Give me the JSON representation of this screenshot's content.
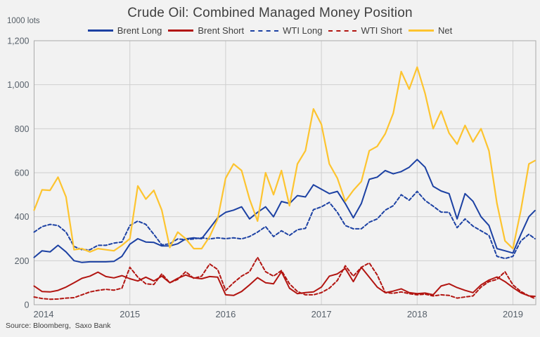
{
  "chart_data": {
    "type": "line",
    "title": "Crude Oil: Combined Managed Money Position",
    "ylabel": "1000 lots",
    "source": "Source: Bloomberg,  Saxo Bank",
    "xlim": [
      2014,
      2019.25
    ],
    "ylim": [
      0,
      1200
    ],
    "grid": true,
    "legend_position": "top",
    "x_ticks": [
      2014,
      2015,
      2016,
      2017,
      2018,
      2019
    ],
    "y_ticks": [
      0,
      200,
      400,
      600,
      800,
      1000,
      1200
    ],
    "y_tick_labels": [
      "0",
      "200",
      "400",
      "600",
      "800",
      "1,000",
      "1,200"
    ],
    "x_unit": "year (monthly samples)",
    "x": [
      2014.0,
      2014.083,
      2014.167,
      2014.25,
      2014.333,
      2014.417,
      2014.5,
      2014.583,
      2014.667,
      2014.75,
      2014.833,
      2014.917,
      2015.0,
      2015.083,
      2015.167,
      2015.25,
      2015.333,
      2015.417,
      2015.5,
      2015.583,
      2015.667,
      2015.75,
      2015.833,
      2015.917,
      2016.0,
      2016.083,
      2016.167,
      2016.25,
      2016.333,
      2016.417,
      2016.5,
      2016.583,
      2016.667,
      2016.75,
      2016.833,
      2016.917,
      2017.0,
      2017.083,
      2017.167,
      2017.25,
      2017.333,
      2017.417,
      2017.5,
      2017.583,
      2017.667,
      2017.75,
      2017.833,
      2017.917,
      2018.0,
      2018.083,
      2018.167,
      2018.25,
      2018.333,
      2018.417,
      2018.5,
      2018.583,
      2018.667,
      2018.75,
      2018.833,
      2018.917,
      2019.0,
      2019.083,
      2019.167,
      2019.23
    ],
    "series": [
      {
        "name": "Brent Long",
        "color": "#1c41a3",
        "dash": "solid",
        "values": [
          215,
          245,
          240,
          270,
          240,
          200,
          192,
          195,
          195,
          195,
          197,
          220,
          275,
          300,
          285,
          283,
          267,
          267,
          277,
          299,
          304,
          300,
          347,
          395,
          420,
          430,
          445,
          390,
          420,
          445,
          400,
          469,
          460,
          496,
          490,
          545,
          525,
          505,
          515,
          460,
          395,
          460,
          570,
          580,
          610,
          595,
          605,
          625,
          660,
          625,
          538,
          517,
          505,
          390,
          505,
          470,
          400,
          360,
          255,
          245,
          235,
          320,
          400,
          428
        ]
      },
      {
        "name": "Brent Short",
        "color": "#b21511",
        "dash": "solid",
        "values": [
          85,
          60,
          58,
          65,
          80,
          100,
          120,
          130,
          148,
          128,
          122,
          132,
          118,
          108,
          125,
          108,
          130,
          100,
          120,
          135,
          122,
          118,
          128,
          125,
          45,
          42,
          60,
          90,
          123,
          100,
          95,
          150,
          75,
          50,
          55,
          58,
          80,
          130,
          140,
          165,
          105,
          170,
          125,
          80,
          55,
          62,
          72,
          55,
          50,
          53,
          45,
          85,
          95,
          78,
          65,
          55,
          90,
          112,
          126,
          105,
          78,
          54,
          40,
          38
        ]
      },
      {
        "name": "WTI Long",
        "color": "#1c41a3",
        "dash": "dashed",
        "values": [
          330,
          355,
          365,
          360,
          330,
          265,
          250,
          250,
          270,
          270,
          280,
          285,
          360,
          380,
          365,
          320,
          272,
          277,
          299,
          296,
          299,
          304,
          299,
          304,
          300,
          304,
          299,
          310,
          330,
          355,
          310,
          336,
          315,
          341,
          347,
          432,
          445,
          465,
          420,
          360,
          345,
          345,
          375,
          390,
          430,
          450,
          500,
          475,
          515,
          474,
          448,
          421,
          420,
          350,
          390,
          357,
          336,
          315,
          220,
          210,
          220,
          290,
          320,
          300
        ]
      },
      {
        "name": "WTI Short",
        "color": "#b21511",
        "dash": "dashed",
        "values": [
          35,
          28,
          25,
          26,
          30,
          32,
          45,
          58,
          65,
          70,
          66,
          75,
          170,
          125,
          95,
          92,
          140,
          100,
          115,
          150,
          120,
          130,
          185,
          160,
          65,
          100,
          130,
          150,
          215,
          150,
          130,
          155,
          95,
          60,
          45,
          45,
          55,
          75,
          110,
          177,
          130,
          170,
          190,
          135,
          55,
          52,
          58,
          50,
          45,
          48,
          40,
          45,
          42,
          30,
          35,
          40,
          80,
          105,
          115,
          150,
          90,
          60,
          40,
          28
        ]
      },
      {
        "name": "Net",
        "color": "#fdc42f",
        "dash": "solid",
        "values": [
          430,
          522,
          520,
          580,
          490,
          250,
          255,
          240,
          255,
          250,
          245,
          270,
          300,
          540,
          480,
          520,
          430,
          260,
          330,
          300,
          255,
          255,
          310,
          390,
          575,
          640,
          610,
          480,
          380,
          600,
          500,
          610,
          450,
          640,
          700,
          890,
          820,
          640,
          575,
          470,
          520,
          560,
          700,
          720,
          777,
          870,
          1060,
          980,
          1080,
          960,
          800,
          880,
          780,
          730,
          815,
          740,
          800,
          700,
          460,
          290,
          255,
          430,
          640,
          655
        ]
      }
    ],
    "colors": {
      "blue": "#1c41a3",
      "red": "#b21511",
      "gold": "#fdc42f",
      "grid": "#cfcfcf",
      "border": "#ababab",
      "tick_text": "#57606a"
    }
  }
}
